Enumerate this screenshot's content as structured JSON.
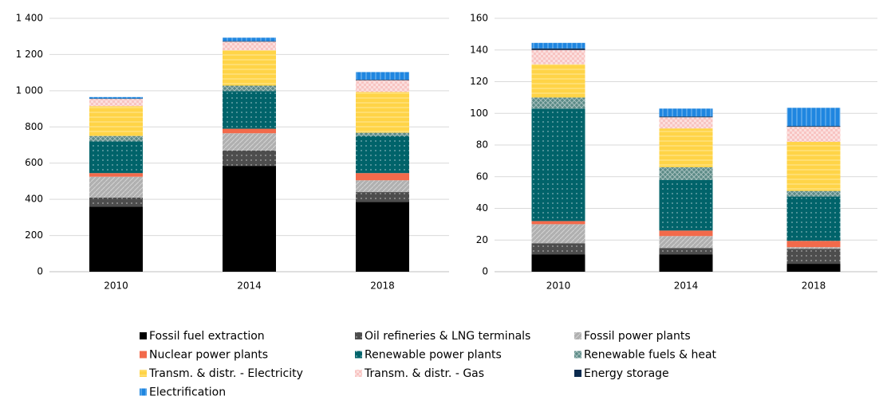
{
  "chart_data": [
    {
      "type": "bar",
      "stacked": true,
      "categories": [
        "2010",
        "2014",
        "2018"
      ],
      "ylim": [
        0,
        1400
      ],
      "yticks": [
        0,
        200,
        400,
        600,
        800,
        {
          "value": 1000,
          "label": "1 000"
        },
        {
          "value": 1200,
          "label": "1 200"
        },
        {
          "value": 1400,
          "label": "1 400"
        }
      ],
      "grid": true,
      "series": [
        {
          "name": "Fossil fuel extraction",
          "color": "#000000",
          "values": [
            360,
            585,
            385
          ]
        },
        {
          "name": "Oil refineries & LNG terminals",
          "color": "#4d4d4d",
          "values": [
            50,
            85,
            55
          ]
        },
        {
          "name": "Fossil power plants",
          "color": "#b0b0b0",
          "values": [
            115,
            95,
            65
          ]
        },
        {
          "name": "Nuclear power plants",
          "color": "#f26a4b",
          "values": [
            20,
            25,
            40
          ]
        },
        {
          "name": "Renewable power plants",
          "color": "#00636a",
          "values": [
            175,
            208,
            205
          ]
        },
        {
          "name": "Renewable fuels & heat",
          "color": "#5b8a86",
          "values": [
            30,
            30,
            18
          ]
        },
        {
          "name": "Transm. & distr. - Electricity",
          "color": "#ffd447",
          "values": [
            165,
            195,
            225
          ]
        },
        {
          "name": "Transm. & distr. - Gas",
          "color": "#f8c4c2",
          "values": [
            40,
            48,
            65
          ]
        },
        {
          "name": "Energy storage",
          "color": "#0b2a4e",
          "values": [
            2,
            3,
            3
          ]
        },
        {
          "name": "Electrification",
          "color": "#1f86e0",
          "values": [
            8,
            19,
            42
          ]
        }
      ]
    },
    {
      "type": "bar",
      "stacked": true,
      "categories": [
        "2010",
        "2014",
        "2018"
      ],
      "ylim": [
        0,
        160
      ],
      "yticks": [
        0,
        20,
        40,
        60,
        80,
        100,
        120,
        140,
        160
      ],
      "grid": true,
      "series": [
        {
          "values": [
            11,
            11,
            5
          ]
        },
        {
          "values": [
            7,
            4,
            9.5
          ]
        },
        {
          "values": [
            12,
            7.5,
            1
          ]
        },
        {
          "values": [
            2,
            3.5,
            4
          ]
        },
        {
          "values": [
            71,
            32,
            28
          ]
        },
        {
          "values": [
            7,
            8,
            3.5
          ]
        },
        {
          "values": [
            21,
            24.5,
            31
          ]
        },
        {
          "values": [
            9,
            7,
            9.5
          ]
        },
        {
          "values": [
            1,
            0.5,
            0.5
          ]
        },
        {
          "values": [
            3.5,
            5,
            11.5
          ]
        }
      ]
    }
  ]
}
